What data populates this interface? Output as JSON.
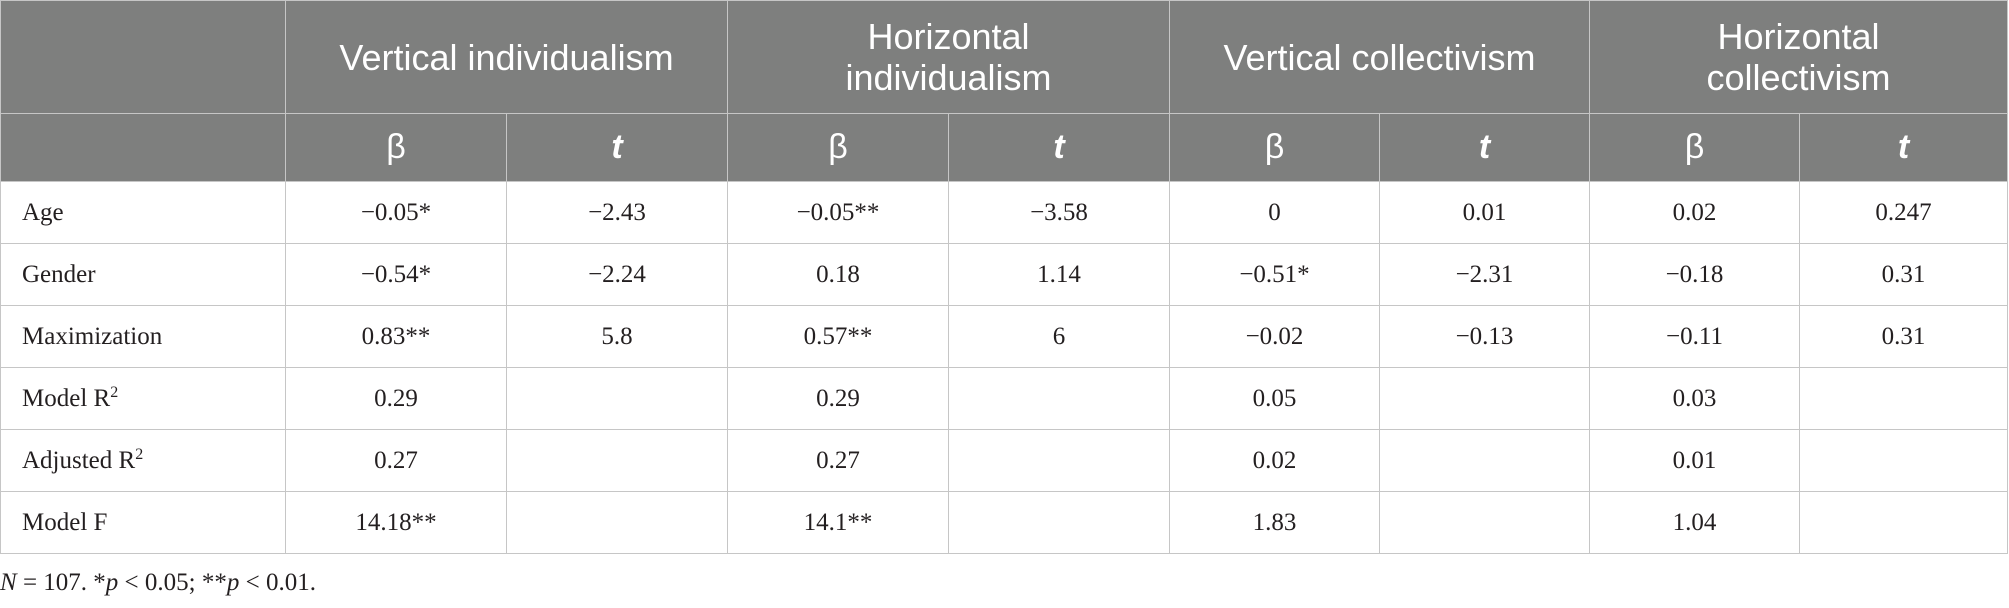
{
  "table": {
    "groups": [
      {
        "line1": "Vertical individualism",
        "line2": ""
      },
      {
        "line1": "Horizontal",
        "line2": "individualism"
      },
      {
        "line1": "Vertical collectivism",
        "line2": ""
      },
      {
        "line1": "Horizontal",
        "line2": "collectivism"
      }
    ],
    "subheaders": [
      "β",
      "t",
      "β",
      "t",
      "β",
      "t",
      "β",
      "t"
    ],
    "rows": [
      {
        "label": "Age",
        "sup": "",
        "cells": [
          "−0.05*",
          "−2.43",
          "−0.05**",
          "−3.58",
          "0",
          "0.01",
          "0.02",
          "0.247"
        ]
      },
      {
        "label": "Gender",
        "sup": "",
        "cells": [
          "−0.54*",
          "−2.24",
          "0.18",
          "1.14",
          "−0.51*",
          "−2.31",
          "−0.18",
          "0.31"
        ]
      },
      {
        "label": "Maximization",
        "sup": "",
        "cells": [
          "0.83**",
          "5.8",
          "0.57**",
          "6",
          "−0.02",
          "−0.13",
          "−0.11",
          "0.31"
        ]
      },
      {
        "label": "Model R",
        "sup": "2",
        "cells": [
          "0.29",
          "",
          "0.29",
          "",
          "0.05",
          "",
          "0.03",
          ""
        ]
      },
      {
        "label": "Adjusted R",
        "sup": "2",
        "cells": [
          "0.27",
          "",
          "0.27",
          "",
          "0.02",
          "",
          "0.01",
          ""
        ]
      },
      {
        "label": "Model F",
        "sup": "",
        "cells": [
          "14.18**",
          "",
          "14.1**",
          "",
          "1.83",
          "",
          "1.04",
          ""
        ]
      }
    ]
  },
  "note": {
    "n_symbol": "N",
    "n_text": " = 107. *",
    "p1_symbol": "p",
    "p1_text": " < 0.05; **",
    "p2_symbol": "p",
    "p2_text": " < 0.01."
  }
}
